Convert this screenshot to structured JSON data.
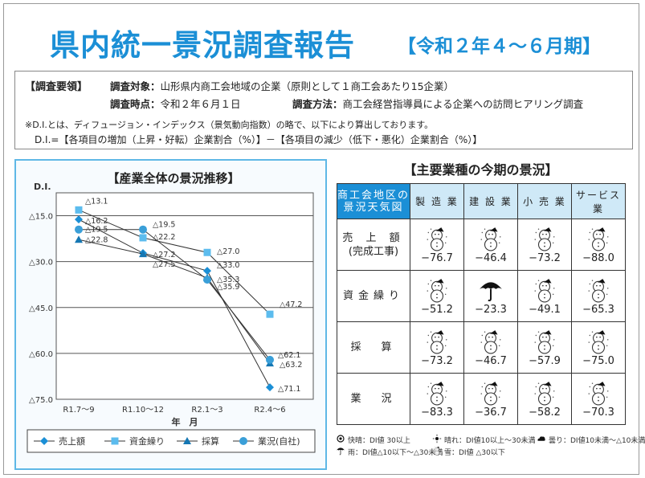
{
  "title": "県内統一景況調査報告",
  "period": "【令和２年４～６月期】",
  "survey": {
    "heading": "【調査要領】",
    "target_label": "調査対象：",
    "target": "山形県内商工会地域の企業（原則として１商工会あたり15企業）",
    "time_label": "調査時点：",
    "time": "令和２年６月１日",
    "method_label": "調査方法：",
    "method": "商工会経営指導員による企業への訪問ヒアリング調査",
    "note": "※D.I.とは、ディフュージョン・インデックス（景気動向指数）の略で、以下により算出しております。",
    "formula": "D.I.=【各項目の増加（上昇・好転）企業割合（%）】－【各項目の減少（低下・悪化）企業割合（%）】"
  },
  "chart_data": {
    "type": "line",
    "title": "【産業全体の景況推移】",
    "ylabel": "D.I.",
    "xlabel": "年　月",
    "categories": [
      "R1.7～9",
      "R1.10～12",
      "R2.1～3",
      "R2.4～6"
    ],
    "ylim": [
      -75,
      -7.5
    ],
    "yticks": [
      -15,
      -30,
      -45,
      -60,
      -75
    ],
    "ytick_labels": [
      "△15.0",
      "△30.0",
      "△45.0",
      "△60.0",
      "△75.0"
    ],
    "grid": true,
    "legend": "bottom",
    "series": [
      {
        "name": "売上額",
        "marker": "diamond",
        "color": "#1b8fd6",
        "values": [
          -16.2,
          -27.2,
          -33.0,
          -71.1
        ],
        "labels": [
          "△16.2",
          "△27.2",
          "△33.0",
          "△71.1"
        ]
      },
      {
        "name": "資金繰り",
        "marker": "square",
        "color": "#5cbcee",
        "values": [
          -13.1,
          -22.2,
          -27.0,
          -47.2
        ],
        "labels": [
          "△13.1",
          "△22.2",
          "△27.0",
          "△47.2"
        ]
      },
      {
        "name": "採算",
        "marker": "triangle",
        "color": "#1577b3",
        "values": [
          -22.8,
          -27.5,
          -35.3,
          -63.2
        ],
        "labels": [
          "△22.8",
          "△27.5",
          "△35.3",
          "△63.2"
        ]
      },
      {
        "name": "業況(自社)",
        "marker": "circle",
        "color": "#3a9fd8",
        "values": [
          -19.5,
          -19.5,
          -35.9,
          -62.1
        ],
        "labels": [
          "△19.5",
          "△19.5",
          "△35.9",
          "△62.1"
        ]
      }
    ]
  },
  "table": {
    "title": "【主要業種の今期の景況】",
    "corner": [
      "商工会地区の",
      "景況天気図"
    ],
    "columns": [
      "製 造 業",
      "建 設 業",
      "小 売 業",
      "サービス業"
    ],
    "rows": [
      {
        "label": [
          "売 上 額",
          "(完成工事)"
        ],
        "cells": [
          {
            "icon": "snow",
            "value": "−76.7"
          },
          {
            "icon": "snow",
            "value": "−46.4"
          },
          {
            "icon": "snow",
            "value": "−73.2"
          },
          {
            "icon": "snow",
            "value": "−88.0"
          }
        ]
      },
      {
        "label": [
          "資金繰り"
        ],
        "cells": [
          {
            "icon": "snow",
            "value": "−51.2"
          },
          {
            "icon": "rain",
            "value": "−23.3"
          },
          {
            "icon": "snow",
            "value": "−49.1"
          },
          {
            "icon": "snow",
            "value": "−65.3"
          }
        ]
      },
      {
        "label": [
          "採　算"
        ],
        "cells": [
          {
            "icon": "snow",
            "value": "−73.2"
          },
          {
            "icon": "snow",
            "value": "−46.7"
          },
          {
            "icon": "snow",
            "value": "−57.9"
          },
          {
            "icon": "snow",
            "value": "−75.0"
          }
        ]
      },
      {
        "label": [
          "業　況"
        ],
        "cells": [
          {
            "icon": "snow",
            "value": "−83.3"
          },
          {
            "icon": "snow",
            "value": "−36.7"
          },
          {
            "icon": "snow",
            "value": "−58.2"
          },
          {
            "icon": "snow",
            "value": "−70.3"
          }
        ]
      }
    ]
  },
  "weather_legend": [
    {
      "icon": "sunny-bright",
      "text": "快晴：DI値 30以上"
    },
    {
      "icon": "sunny",
      "text": "晴れ：DI値10以上～30未満"
    },
    {
      "icon": "cloudy",
      "text": "曇り：DI値10未満～△10未満"
    },
    {
      "icon": "rain",
      "text": "雨：DI値△10以下～△30未満"
    },
    {
      "icon": "snow",
      "text": "雪：DI値 △30以下"
    }
  ]
}
